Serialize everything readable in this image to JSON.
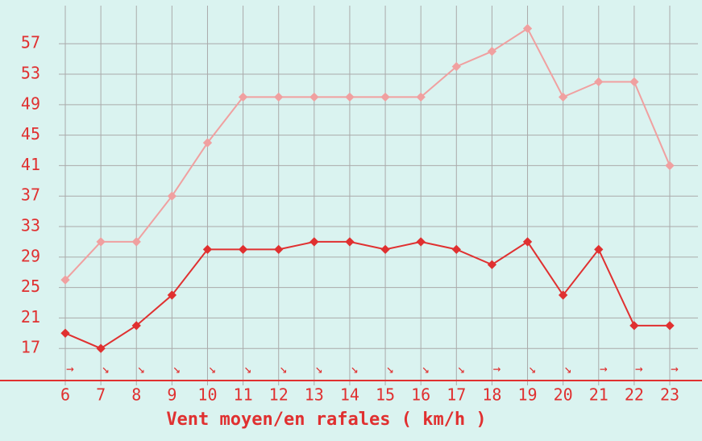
{
  "chart_data": {
    "type": "line",
    "x_label": "Vent moyen/en rafales ( km/h )",
    "x": [
      6,
      7,
      8,
      9,
      10,
      11,
      12,
      13,
      14,
      15,
      16,
      17,
      18,
      19,
      20,
      21,
      22,
      23
    ],
    "xlim": [
      6,
      23
    ],
    "xticks": [
      6,
      7,
      8,
      9,
      10,
      11,
      12,
      13,
      14,
      15,
      16,
      17,
      18,
      19,
      20,
      21,
      22,
      23
    ],
    "ylim": [
      13,
      62
    ],
    "yticks": [
      17,
      21,
      25,
      29,
      33,
      37,
      41,
      45,
      49,
      53,
      57
    ],
    "grid": true,
    "series": [
      {
        "color": "#f0a0a0",
        "values": [
          26,
          31,
          31,
          37,
          44,
          50,
          50,
          50,
          50,
          50,
          50,
          54,
          56,
          59,
          50,
          52,
          52,
          41
        ]
      },
      {
        "color": "#e03030",
        "values": [
          19,
          17,
          20,
          24,
          30,
          30,
          30,
          31,
          31,
          30,
          31,
          30,
          28,
          31,
          24,
          30,
          20,
          20
        ]
      }
    ],
    "wind_arrows": [
      "→",
      "↘",
      "↘",
      "↘",
      "↘",
      "↘",
      "↘",
      "↘",
      "↘",
      "↘",
      "↘",
      "↘",
      "→",
      "↘",
      "↘",
      "→",
      "→",
      "→"
    ]
  }
}
